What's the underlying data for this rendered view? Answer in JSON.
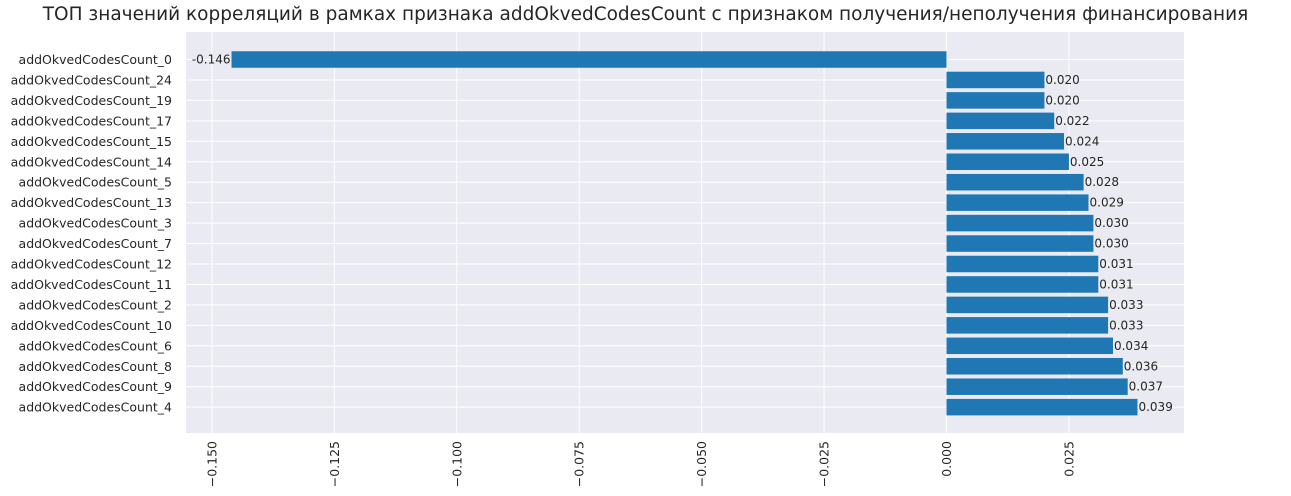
{
  "chart_data": {
    "type": "bar",
    "orientation": "horizontal",
    "title": "ТОП значений корреляций в рамках признака addOkvedCodesCount с признаком получения/неполучения финансирования",
    "xlabel": "",
    "ylabel": "",
    "categories": [
      "addOkvedCodesCount_0",
      "addOkvedCodesCount_24",
      "addOkvedCodesCount_19",
      "addOkvedCodesCount_17",
      "addOkvedCodesCount_15",
      "addOkvedCodesCount_14",
      "addOkvedCodesCount_5",
      "addOkvedCodesCount_13",
      "addOkvedCodesCount_3",
      "addOkvedCodesCount_7",
      "addOkvedCodesCount_12",
      "addOkvedCodesCount_11",
      "addOkvedCodesCount_2",
      "addOkvedCodesCount_10",
      "addOkvedCodesCount_6",
      "addOkvedCodesCount_8",
      "addOkvedCodesCount_9",
      "addOkvedCodesCount_4"
    ],
    "values": [
      -0.146,
      0.02,
      0.02,
      0.022,
      0.024,
      0.025,
      0.028,
      0.029,
      0.03,
      0.03,
      0.031,
      0.031,
      0.033,
      0.033,
      0.034,
      0.036,
      0.037,
      0.039
    ],
    "data_labels": [
      "-0.146",
      "0.020",
      "0.020",
      "0.022",
      "0.024",
      "0.025",
      "0.028",
      "0.029",
      "0.030",
      "0.030",
      "0.031",
      "0.031",
      "0.033",
      "0.033",
      "0.034",
      "0.036",
      "0.037",
      "0.039"
    ],
    "xticks": [
      -0.15,
      -0.125,
      -0.1,
      -0.075,
      -0.05,
      -0.025,
      0.0,
      0.025
    ],
    "xtick_labels": [
      "−0.150",
      "−0.125",
      "−0.100",
      "−0.075",
      "−0.050",
      "−0.025",
      "0.000",
      "0.025"
    ],
    "xlim": [
      -0.1553,
      0.0485
    ],
    "grid": true,
    "legend": "none",
    "colors": {
      "bar": "#1f77b4",
      "background": "#eaeaf2",
      "grid": "#ffffff"
    }
  }
}
